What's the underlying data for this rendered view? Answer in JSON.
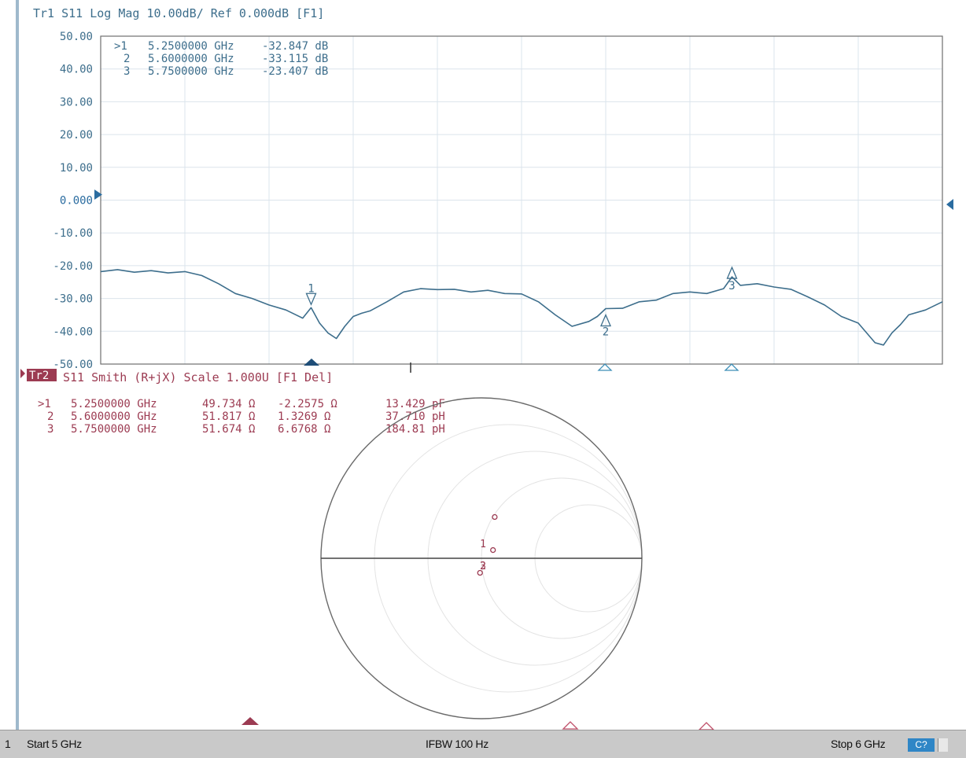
{
  "colors": {
    "trace1": "#3d6e8c",
    "trace2": "#9c3b52",
    "grid": "#dbe4ec",
    "frame": "#6f6f6f",
    "status_bg": "#c9c9c9",
    "channel_badge": "#2f86c6"
  },
  "trace1": {
    "title": "Tr1 S11 Log Mag 10.00dB/ Ref 0.000dB [F1]",
    "ref_label": "0.000",
    "markers": [
      {
        "id": ">1",
        "freq": "5.2500000 GHz",
        "value": "-32.847 dB"
      },
      {
        "id": "2",
        "freq": "5.6000000 GHz",
        "value": "-33.115 dB"
      },
      {
        "id": "3",
        "freq": "5.7500000 GHz",
        "value": "-23.407 dB"
      }
    ],
    "marker_labels": [
      "1",
      "2",
      "3"
    ]
  },
  "trace2": {
    "title": "Tr2 S11 Smith (R+jX) Scale 1.000U [F1 Del]",
    "title_badge": "Tr2",
    "title_rest": "S11 Smith (R+jX) Scale 1.000U [F1 Del]",
    "markers": [
      {
        "id": ">1",
        "freq": "5.2500000 GHz",
        "r": "49.734 Ω",
        "x": "-2.2575 Ω",
        "lc": "13.429 pF"
      },
      {
        "id": "2",
        "freq": "5.6000000 GHz",
        "r": "51.817 Ω",
        "x": "1.3269 Ω",
        "lc": "37.710 pH"
      },
      {
        "id": "3",
        "freq": "5.7500000 GHz",
        "r": "51.674 Ω",
        "x": "6.6768 Ω",
        "lc": "184.81 pH"
      }
    ],
    "marker_labels": [
      "1",
      "2",
      "3"
    ]
  },
  "status": {
    "channel": "1",
    "start": "Start 5 GHz",
    "ifbw": "IFBW 100 Hz",
    "stop": "Stop 6 GHz",
    "badge": "C?"
  },
  "chart_data": [
    {
      "type": "line",
      "title": "Tr1 S11 Log Mag 10.00dB/ Ref 0.000dB [F1]",
      "x_unit": "GHz",
      "xlim": [
        5,
        6
      ],
      "ylim": [
        -50,
        50
      ],
      "yticks": [
        "50.00",
        "40.00",
        "30.00",
        "20.00",
        "10.00",
        "0.000",
        "-10.00",
        "-20.00",
        "-30.00",
        "-40.00",
        "-50.00"
      ],
      "grid": true,
      "series": [
        {
          "x": [
            5.0,
            5.02,
            5.04,
            5.06,
            5.08,
            5.1,
            5.12,
            5.14,
            5.16,
            5.18,
            5.2,
            5.22,
            5.24,
            5.25,
            5.26,
            5.27,
            5.28,
            5.29,
            5.3,
            5.31,
            5.32,
            5.34,
            5.36,
            5.38,
            5.4,
            5.42,
            5.44,
            5.46,
            5.48,
            5.5,
            5.52,
            5.54,
            5.56,
            5.58,
            5.59,
            5.6,
            5.62,
            5.64,
            5.66,
            5.68,
            5.7,
            5.72,
            5.74,
            5.75,
            5.76,
            5.78,
            5.8,
            5.82,
            5.84,
            5.86,
            5.88,
            5.9,
            5.91,
            5.92,
            5.93,
            5.94,
            5.95,
            5.96,
            5.98,
            6.0
          ],
          "y": [
            -21.8,
            -21.2,
            -22.0,
            -21.5,
            -22.2,
            -21.8,
            -23.0,
            -25.5,
            -28.5,
            -30.0,
            -32.0,
            -33.5,
            -36.0,
            -32.8,
            -37.5,
            -40.5,
            -42.2,
            -38.5,
            -35.5,
            -34.5,
            -33.8,
            -31.0,
            -28.0,
            -27.0,
            -27.3,
            -27.2,
            -28.0,
            -27.5,
            -28.5,
            -28.6,
            -31.0,
            -35.0,
            -38.5,
            -37.0,
            -35.5,
            -33.1,
            -33.0,
            -31.0,
            -30.5,
            -28.5,
            -28.0,
            -28.5,
            -27.0,
            -23.4,
            -26.0,
            -25.5,
            -26.5,
            -27.2,
            -29.5,
            -32.0,
            -35.5,
            -37.5,
            -40.5,
            -43.5,
            -44.2,
            -40.5,
            -38.0,
            -35.0,
            -33.5,
            -31.0
          ]
        }
      ],
      "markers": [
        {
          "label": "1",
          "x": 5.25,
          "y": -32.847
        },
        {
          "label": "2",
          "x": 5.6,
          "y": -33.115
        },
        {
          "label": "3",
          "x": 5.75,
          "y": -23.407
        }
      ]
    },
    {
      "type": "scatter",
      "title": "Tr2 S11 Smith (R+jX) Scale 1.000U [F1 Del]",
      "scale": "1.000U",
      "markers": [
        {
          "label": "1",
          "r_ohm": 49.734,
          "x_ohm": -2.2575
        },
        {
          "label": "2",
          "r_ohm": 51.817,
          "x_ohm": 1.3269
        },
        {
          "label": "3",
          "r_ohm": 51.674,
          "x_ohm": 6.6768
        }
      ]
    }
  ]
}
